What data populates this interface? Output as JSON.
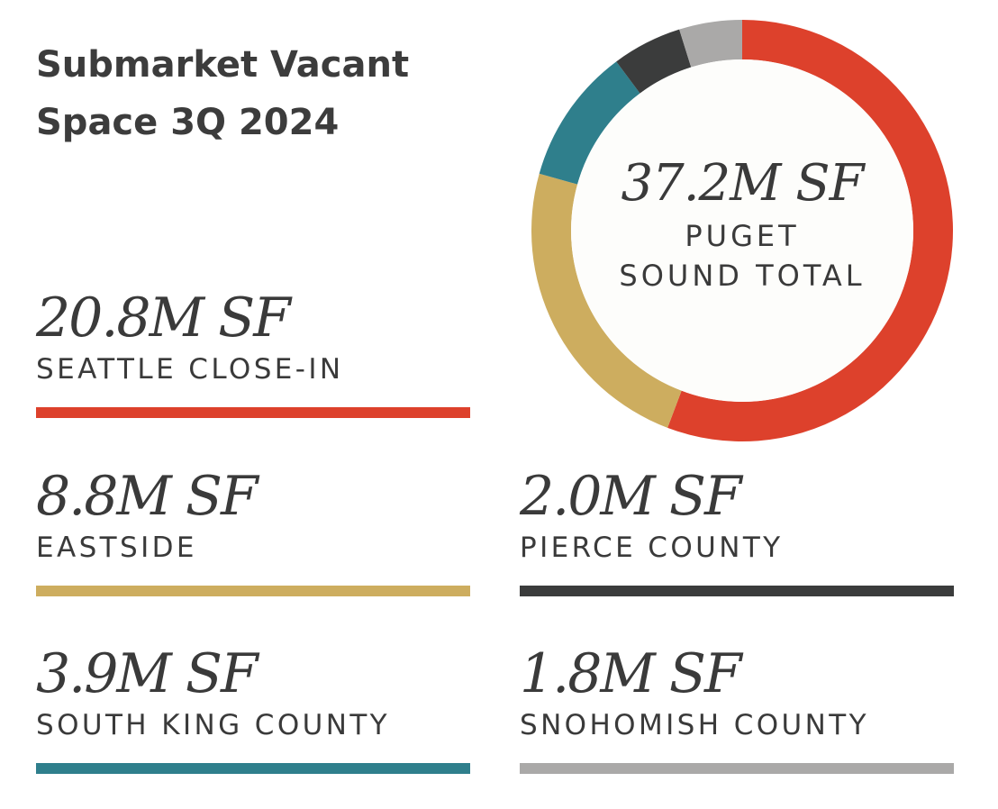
{
  "title_lines": [
    "Submarket Vacant",
    "Space 3Q 2024"
  ],
  "chart_data": {
    "type": "pie",
    "title": "Submarket Vacant Space 3Q 2024",
    "center_value": "37.2M SF",
    "center_label_lines": [
      "PUGET",
      "SOUND TOTAL"
    ],
    "unit": "M SF",
    "total": 37.2,
    "slices": [
      {
        "label": "SEATTLE CLOSE-IN",
        "value": 20.8,
        "display": "20.8M SF",
        "color": "#dd412c"
      },
      {
        "label": "EASTSIDE",
        "value": 8.8,
        "display": "8.8M SF",
        "color": "#cdad5f"
      },
      {
        "label": "SOUTH KING COUNTY",
        "value": 3.9,
        "display": "3.9M SF",
        "color": "#2f7f8c"
      },
      {
        "label": "PIERCE COUNTY",
        "value": 2.0,
        "display": "2.0M SF",
        "color": "#3b3c3c"
      },
      {
        "label": "SNOHOMISH COUNTY",
        "value": 1.8,
        "display": "1.8M SF",
        "color": "#aaa9a8"
      }
    ]
  }
}
